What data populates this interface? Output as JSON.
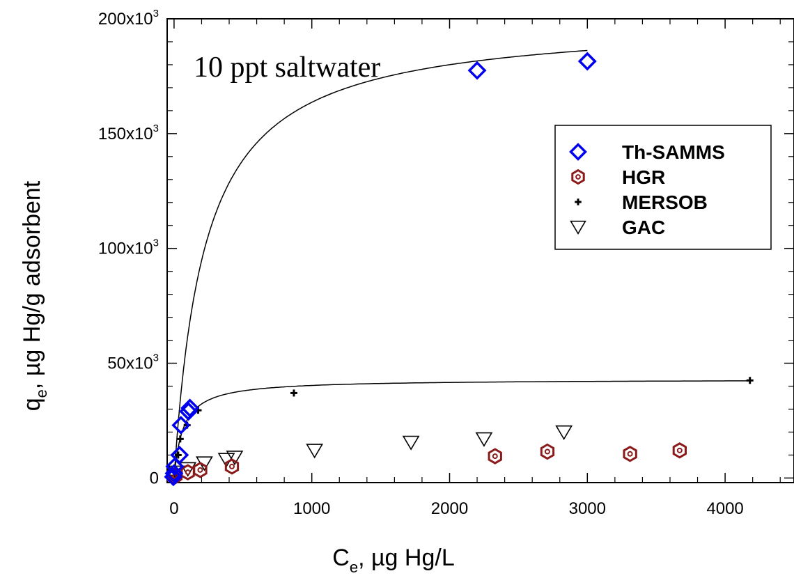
{
  "chart_data": {
    "type": "scatter",
    "annotation": "10 ppt saltwater",
    "xlabel": {
      "symbol": "C",
      "subscript": "e",
      "rest": ", µg Hg/L"
    },
    "ylabel": {
      "symbol": "q",
      "subscript": "e",
      "rest": ", µg Hg/g adsorbent"
    },
    "xlim": [
      -50,
      4500
    ],
    "ylim": [
      -2000,
      200000
    ],
    "x_ticks": [
      {
        "value": 0,
        "label": "0"
      },
      {
        "value": 1000,
        "label": "1000"
      },
      {
        "value": 2000,
        "label": "2000"
      },
      {
        "value": 3000,
        "label": "3000"
      },
      {
        "value": 4000,
        "label": "4000"
      }
    ],
    "y_ticks": [
      {
        "value": 0,
        "base": "0",
        "exp": ""
      },
      {
        "value": 50000,
        "base": "50x10",
        "exp": "3"
      },
      {
        "value": 100000,
        "base": "100x10",
        "exp": "3"
      },
      {
        "value": 150000,
        "base": "150x10",
        "exp": "3"
      },
      {
        "value": 200000,
        "base": "200x10",
        "exp": "3"
      }
    ],
    "legend_position": "right",
    "series": [
      {
        "name": "Th-SAMMS",
        "marker": "diamond",
        "color": "#0000ee",
        "points": [
          [
            -5,
            500
          ],
          [
            0,
            2000
          ],
          [
            5,
            5000
          ],
          [
            40,
            10000
          ],
          [
            50,
            23000
          ],
          [
            105,
            29000
          ],
          [
            115,
            30500
          ],
          [
            2200,
            177500
          ],
          [
            3000,
            181500
          ]
        ],
        "fit": {
          "model": "langmuir",
          "qmax": 200000,
          "K": 0.0045
        }
      },
      {
        "name": "HGR",
        "marker": "hexagon",
        "color": "#8b1a1a",
        "points": [
          [
            0,
            500
          ],
          [
            10,
            1000
          ],
          [
            100,
            2500
          ],
          [
            190,
            3500
          ],
          [
            420,
            5000
          ],
          [
            2330,
            9500
          ],
          [
            2710,
            11500
          ],
          [
            3310,
            10500
          ],
          [
            3670,
            12000
          ]
        ]
      },
      {
        "name": "MERSOB",
        "marker": "plus",
        "color": "#000000",
        "points": [
          [
            5,
            1000
          ],
          [
            15,
            3000
          ],
          [
            30,
            10000
          ],
          [
            45,
            17000
          ],
          [
            95,
            23000
          ],
          [
            175,
            29500
          ],
          [
            870,
            37000
          ],
          [
            4180,
            42500
          ]
        ],
        "fit": {
          "model": "langmuir",
          "qmax": 43000,
          "K": 0.015
        }
      },
      {
        "name": "GAC",
        "marker": "triangle-down",
        "color": "#000000",
        "points": [
          [
            5,
            1000
          ],
          [
            20,
            2500
          ],
          [
            100,
            4000
          ],
          [
            220,
            6500
          ],
          [
            380,
            8000
          ],
          [
            440,
            9000
          ],
          [
            1020,
            12000
          ],
          [
            1720,
            15500
          ],
          [
            2250,
            17000
          ],
          [
            2830,
            20000
          ]
        ]
      }
    ]
  }
}
